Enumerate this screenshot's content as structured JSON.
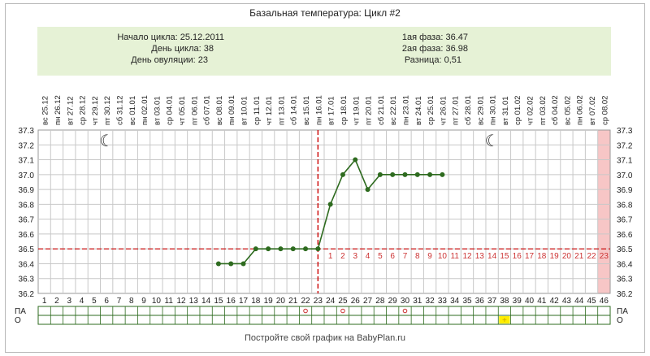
{
  "title": "Базальная температура: Цикл #2",
  "info": {
    "cycle_start_label": "Начало цикла:",
    "cycle_start": "25.12.2011",
    "cycle_day_label": "День цикла:",
    "cycle_day": "38",
    "ovulation_day_label": "День овуляции:",
    "ovulation_day": "23",
    "phase1_label": "1ая фаза:",
    "phase1": "36.47",
    "phase2_label": "2ая фаза:",
    "phase2": "36.98",
    "diff_label": "Разница:",
    "diff": "0,51"
  },
  "footer": "Постройте свой график на BabyPlan.ru",
  "colors": {
    "line": "#2e6b1f",
    "ovulation_line": "#cc0000",
    "coverline": "#cc0000",
    "grid": "#c8c8c8",
    "phase_numbers": "#cc3333",
    "today_fill": "#f7c6c6",
    "info_bg": "#e6f2d6",
    "o_marker": "#ffee00"
  },
  "row_labels": {
    "pa": "ПА",
    "o": "О"
  },
  "chart_data": {
    "type": "line",
    "dates": [
      "25.12",
      "26.12",
      "27.12",
      "28.12",
      "29.12",
      "30.12",
      "31.12",
      "01.01",
      "02.01",
      "03.01",
      "04.01",
      "05.01",
      "06.01",
      "07.01",
      "08.01",
      "09.01",
      "10.01",
      "11.01",
      "12.01",
      "13.01",
      "14.01",
      "15.01",
      "16.01",
      "17.01",
      "18.01",
      "19.01",
      "20.01",
      "21.01",
      "22.01",
      "23.01",
      "24.01",
      "25.01",
      "26.01",
      "27.01",
      "28.01",
      "29.01",
      "30.01",
      "31.01",
      "01.02",
      "02.02",
      "03.02",
      "04.02",
      "05.02",
      "06.02",
      "07.02",
      "08.02"
    ],
    "weekdays": [
      "вс",
      "пн",
      "вт",
      "ср",
      "чт",
      "пт",
      "сб",
      "вс",
      "пн",
      "вт",
      "ср",
      "чт",
      "пт",
      "сб",
      "вс",
      "пн",
      "вт",
      "ср",
      "чт",
      "пт",
      "сб",
      "вс",
      "пн",
      "вт",
      "ср",
      "чт",
      "пт",
      "сб",
      "вс",
      "пн",
      "вт",
      "ср",
      "чт",
      "пт",
      "сб",
      "вс",
      "пн",
      "вт",
      "ср",
      "чт",
      "пт",
      "сб",
      "вс",
      "пн",
      "вт",
      "ср"
    ],
    "days": [
      "1",
      "2",
      "3",
      "4",
      "5",
      "6",
      "7",
      "8",
      "9",
      "10",
      "11",
      "12",
      "13",
      "14",
      "15",
      "16",
      "17",
      "18",
      "19",
      "20",
      "21",
      "22",
      "23",
      "24",
      "25",
      "26",
      "27",
      "28",
      "29",
      "30",
      "31",
      "32",
      "33",
      "34",
      "35",
      "36",
      "37",
      "38",
      "39",
      "40",
      "41",
      "42",
      "43",
      "44",
      "45",
      "46"
    ],
    "temperatures": [
      null,
      null,
      null,
      null,
      null,
      null,
      null,
      null,
      null,
      null,
      null,
      null,
      null,
      null,
      36.4,
      36.4,
      36.4,
      36.5,
      36.5,
      36.5,
      36.5,
      36.5,
      36.5,
      36.8,
      37.0,
      37.1,
      36.9,
      37.0,
      37.0,
      37.0,
      37.0,
      37.0,
      37.0,
      null,
      null,
      null,
      null,
      null,
      null,
      null,
      null,
      null,
      null,
      null,
      null,
      null
    ],
    "y_ticks": [
      "37.3",
      "37.2",
      "37.1",
      "37.0",
      "36.9",
      "36.8",
      "36.7",
      "36.6",
      "36.5",
      "36.4",
      "36.3",
      "36.2"
    ],
    "ylim": [
      36.2,
      37.3
    ],
    "coverline": 36.5,
    "ovulation_day": 23,
    "phase_day_numbers": [
      "1",
      "2",
      "3",
      "4",
      "5",
      "6",
      "7",
      "8",
      "9",
      "10",
      "11",
      "12",
      "13",
      "14",
      "15",
      "16",
      "17",
      "18",
      "19",
      "20",
      "21",
      "22",
      "23"
    ],
    "moon_days": [
      6,
      37
    ],
    "today_day": 46,
    "pa_marks": [
      22,
      25,
      30
    ],
    "o_marks": [
      38
    ],
    "grid": true
  }
}
